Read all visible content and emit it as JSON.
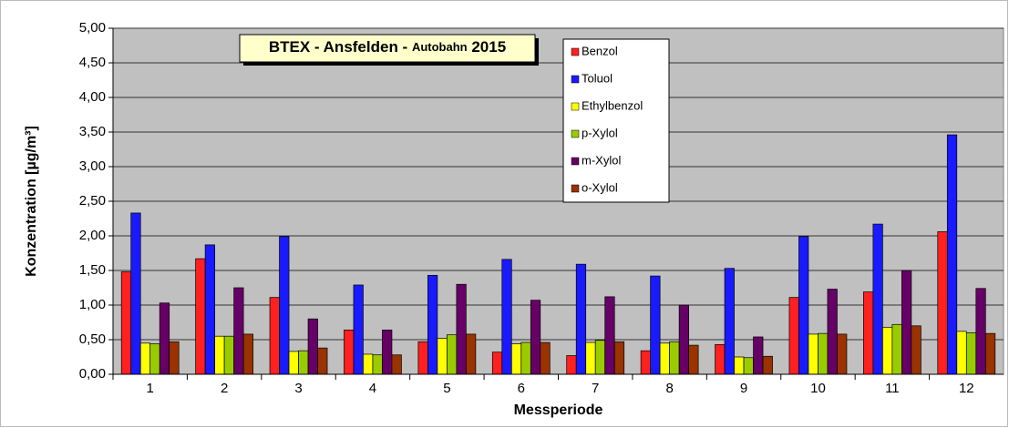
{
  "chart_data": {
    "type": "bar",
    "title_parts": [
      "BTEX - Ansfelden - ",
      "Autobahn",
      " 2015"
    ],
    "x_label": "Messperiode",
    "y_label": "Konzentration [µg/m³]",
    "categories": [
      "1",
      "2",
      "3",
      "4",
      "5",
      "6",
      "7",
      "8",
      "9",
      "10",
      "11",
      "12"
    ],
    "series": [
      {
        "name": "Benzol",
        "color": "#ff2020",
        "values": [
          1.48,
          1.67,
          1.11,
          0.64,
          0.47,
          0.32,
          0.27,
          0.34,
          0.43,
          1.11,
          1.19,
          2.06
        ]
      },
      {
        "name": "Toluol",
        "color": "#1a1aff",
        "values": [
          2.33,
          1.87,
          1.99,
          1.29,
          1.43,
          1.66,
          1.59,
          1.42,
          1.53,
          1.99,
          2.17,
          3.46
        ]
      },
      {
        "name": "Ethylbenzol",
        "color": "#ffff00",
        "values": [
          0.45,
          0.55,
          0.33,
          0.29,
          0.52,
          0.44,
          0.46,
          0.45,
          0.25,
          0.58,
          0.68,
          0.62
        ]
      },
      {
        "name": "p-Xylol",
        "color": "#99cc00",
        "values": [
          0.44,
          0.55,
          0.34,
          0.28,
          0.57,
          0.46,
          0.49,
          0.47,
          0.24,
          0.59,
          0.72,
          0.6
        ]
      },
      {
        "name": "m-Xylol",
        "color": "#660066",
        "values": [
          1.03,
          1.25,
          0.8,
          0.64,
          1.3,
          1.07,
          1.12,
          1.0,
          0.54,
          1.23,
          1.5,
          1.24
        ]
      },
      {
        "name": "o-Xylol",
        "color": "#993300",
        "values": [
          0.47,
          0.58,
          0.38,
          0.28,
          0.58,
          0.46,
          0.47,
          0.42,
          0.26,
          0.58,
          0.7,
          0.59
        ]
      }
    ],
    "ylim": [
      0,
      5
    ],
    "yticks": [
      {
        "value": 0,
        "label": "0,00"
      },
      {
        "value": 0.5,
        "label": "0,50"
      },
      {
        "value": 1,
        "label": "1,00"
      },
      {
        "value": 1.5,
        "label": "1,50"
      },
      {
        "value": 2,
        "label": "2,00"
      },
      {
        "value": 2.5,
        "label": "2,50"
      },
      {
        "value": 3,
        "label": "3,00"
      },
      {
        "value": 3.5,
        "label": "3,50"
      },
      {
        "value": 4,
        "label": "4,00"
      },
      {
        "value": 4.5,
        "label": "4,50"
      },
      {
        "value": 5,
        "label": "5,00"
      }
    ],
    "grid": true,
    "background": "#c0c0c0"
  }
}
